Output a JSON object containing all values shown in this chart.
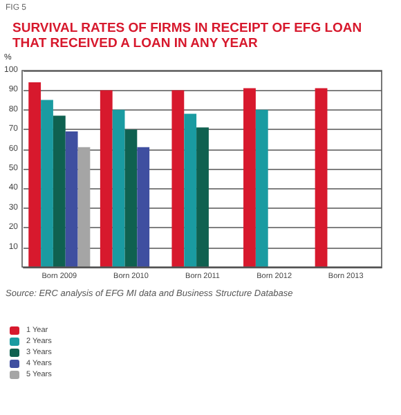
{
  "chart_data": {
    "type": "bar",
    "title": "SURVIVAL RATES OF FIRMS IN RECEIPT OF EFG LOAN THAT RECEIVED A LOAN IN ANY YEAR",
    "ylabel": "%",
    "annotations": [
      "FIG 5",
      "Source: ERC analysis of EFG MI data and Business Structure Database"
    ],
    "categories": [
      "Born 2009",
      "Born 2010",
      "Born 2011",
      "Born 2012",
      "Born 2013"
    ],
    "series": [
      {
        "name": "1 Year",
        "color": "#d7192d",
        "values": [
          94,
          90,
          90,
          91,
          91
        ]
      },
      {
        "name": "2 Years",
        "color": "#1a9ba1",
        "values": [
          85,
          80,
          78,
          80,
          null
        ]
      },
      {
        "name": "3 Years",
        "color": "#0f6150",
        "values": [
          77,
          70,
          71,
          null,
          null
        ]
      },
      {
        "name": "4 Years",
        "color": "#3f4fa0",
        "values": [
          69,
          61,
          null,
          null,
          null
        ]
      },
      {
        "name": "5 Years",
        "color": "#a5a5a5",
        "values": [
          61,
          null,
          null,
          null,
          null
        ]
      }
    ],
    "ylim": [
      0,
      100
    ],
    "yticks": [
      {
        "value": 0,
        "label": null
      },
      10,
      20,
      30,
      40,
      50,
      60,
      70,
      80,
      90,
      100
    ],
    "grid": "y",
    "legend": "bottom left"
  }
}
